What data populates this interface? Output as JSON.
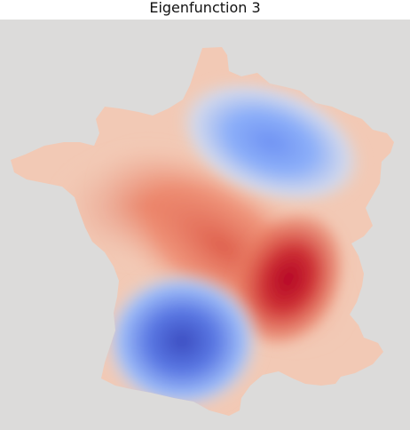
{
  "figure": {
    "title": "Eigenfunction 3"
  },
  "colors": {
    "background": "#dcdbda",
    "base_fill": "#f2c9b5",
    "deep_red": "#b40426",
    "red": "#d8473b",
    "light_red": "#ee8468",
    "deep_blue": "#3b4cc0",
    "blue": "#6f92f3",
    "light_blue": "#cdd9f2"
  },
  "colormap": "coolwarm"
}
